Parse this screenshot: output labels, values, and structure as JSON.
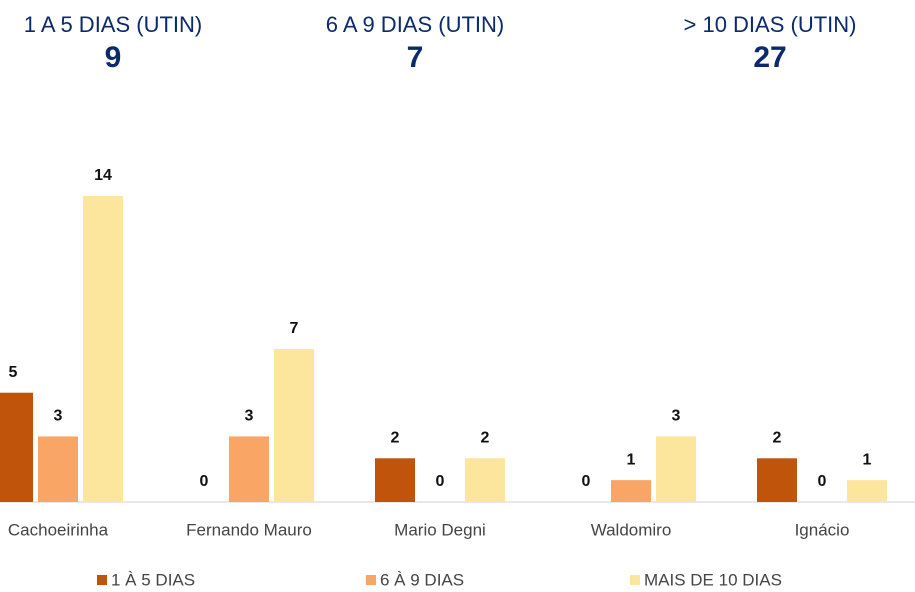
{
  "kpis": [
    {
      "label": "1 A 5 DIAS (UTIN)",
      "value": "9"
    },
    {
      "label": "6 A 9 DIAS (UTIN)",
      "value": "7"
    },
    {
      "label": "> 10 DIAS (UTIN)",
      "value": "27"
    }
  ],
  "chart_data": {
    "type": "bar",
    "categories": [
      "Cachoeirinha",
      "Fernando Mauro",
      "Mario Degni",
      "Waldomiro",
      "Ignácio"
    ],
    "series": [
      {
        "name": "1 À  5 DIAS",
        "color": "#c0540a",
        "values": [
          5,
          0,
          2,
          0,
          2
        ]
      },
      {
        "name": "6 À 9 DIAS",
        "color": "#f8a565",
        "values": [
          3,
          3,
          0,
          1,
          0
        ]
      },
      {
        "name": "MAIS DE 10 DIAS",
        "color": "#fce59d",
        "values": [
          14,
          7,
          2,
          3,
          1
        ]
      }
    ],
    "legend": "bottom"
  }
}
